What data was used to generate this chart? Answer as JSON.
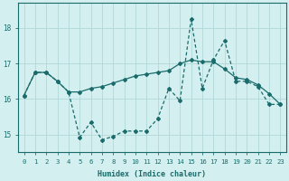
{
  "xlabel": "Humidex (Indice chaleur)",
  "background_color": "#d4efef",
  "grid_color": "#b0d8d8",
  "line_color": "#1a6b6b",
  "xlim": [
    -0.5,
    23.5
  ],
  "ylim": [
    14.5,
    18.7
  ],
  "yticks": [
    15,
    16,
    17,
    18
  ],
  "xticks": [
    0,
    1,
    2,
    3,
    4,
    5,
    6,
    7,
    8,
    9,
    10,
    11,
    12,
    13,
    14,
    15,
    16,
    17,
    18,
    19,
    20,
    21,
    22,
    23
  ],
  "series1_x": [
    0,
    1,
    2,
    3,
    4,
    5,
    6,
    7,
    8,
    9,
    10,
    11,
    12,
    13,
    14,
    15,
    16,
    17,
    18,
    19,
    20,
    21,
    22,
    23
  ],
  "series1_y": [
    16.1,
    16.75,
    16.75,
    16.5,
    16.2,
    16.2,
    16.3,
    16.35,
    16.45,
    16.55,
    16.65,
    16.7,
    16.75,
    16.8,
    17.0,
    17.1,
    17.05,
    17.05,
    16.85,
    16.6,
    16.55,
    16.4,
    16.15,
    15.85
  ],
  "series2_x": [
    0,
    1,
    2,
    3,
    4,
    5,
    6,
    7,
    8,
    9,
    10,
    11,
    12,
    13,
    14,
    15,
    16,
    17,
    18,
    19,
    20,
    21,
    22,
    23
  ],
  "series2_y": [
    16.1,
    16.75,
    16.75,
    16.5,
    16.2,
    14.92,
    15.35,
    14.85,
    14.95,
    15.1,
    15.1,
    15.1,
    15.45,
    16.3,
    15.95,
    18.25,
    16.3,
    17.1,
    17.65,
    16.5,
    16.5,
    16.35,
    15.85,
    15.85
  ]
}
